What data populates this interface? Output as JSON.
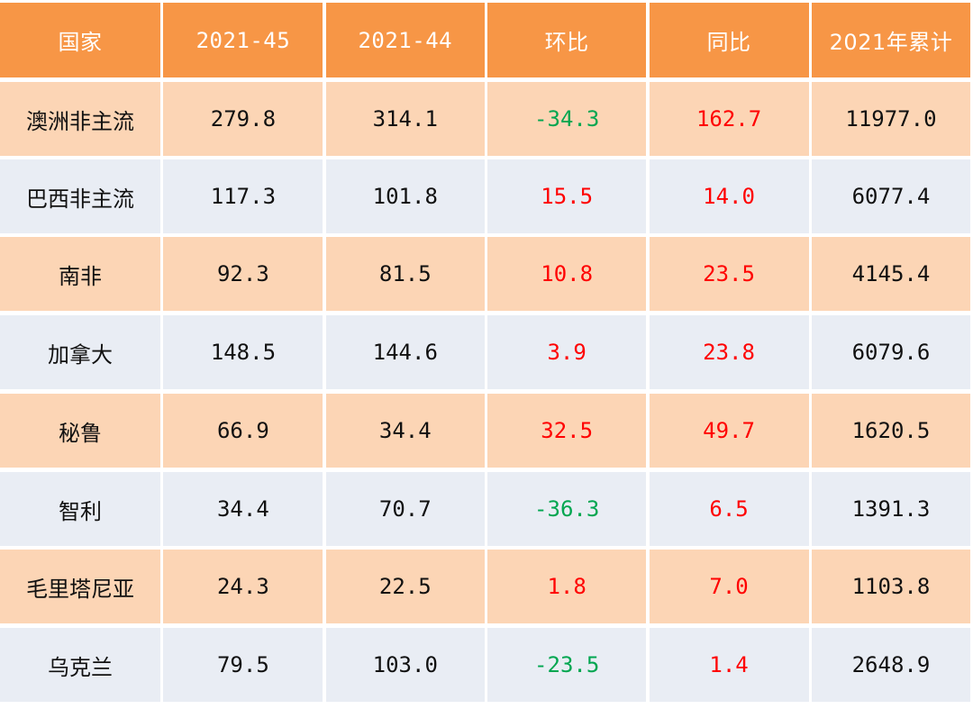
{
  "header": [
    "国家",
    "2021-45",
    "2021-44",
    "环比",
    "同比",
    "2021年累计"
  ],
  "rows": [
    {
      "country": "澳洲非主流",
      "w45": "279.8",
      "w44": "314.1",
      "wow": "-34.3",
      "yoy": "162.7",
      "cum": "11977.0"
    },
    {
      "country": "巴西非主流",
      "w45": "117.3",
      "w44": "101.8",
      "wow": "15.5",
      "yoy": "14.0",
      "cum": "6077.4"
    },
    {
      "country": "南非",
      "w45": "92.3",
      "w44": "81.5",
      "wow": "10.8",
      "yoy": "23.5",
      "cum": "4145.4"
    },
    {
      "country": "加拿大",
      "w45": "148.5",
      "w44": "144.6",
      "wow": "3.9",
      "yoy": "23.8",
      "cum": "6079.6"
    },
    {
      "country": "秘鲁",
      "w45": "66.9",
      "w44": "34.4",
      "wow": "32.5",
      "yoy": "49.7",
      "cum": "1620.5"
    },
    {
      "country": "智利",
      "w45": "34.4",
      "w44": "70.7",
      "wow": "-36.3",
      "yoy": "6.5",
      "cum": "1391.3"
    },
    {
      "country": "毛里塔尼亚",
      "w45": "24.3",
      "w44": "22.5",
      "wow": "1.8",
      "yoy": "7.0",
      "cum": "1103.8"
    },
    {
      "country": "乌克兰",
      "w45": "79.5",
      "w44": "103.0",
      "wow": "-23.5",
      "yoy": "1.4",
      "cum": "2648.9"
    }
  ],
  "colors": {
    "header_bg": "#f79646",
    "odd_row_bg": "#fcd5b5",
    "even_row_bg": "#e9edf4",
    "negative_text": "#00a650",
    "positive_text": "#ff0000"
  }
}
